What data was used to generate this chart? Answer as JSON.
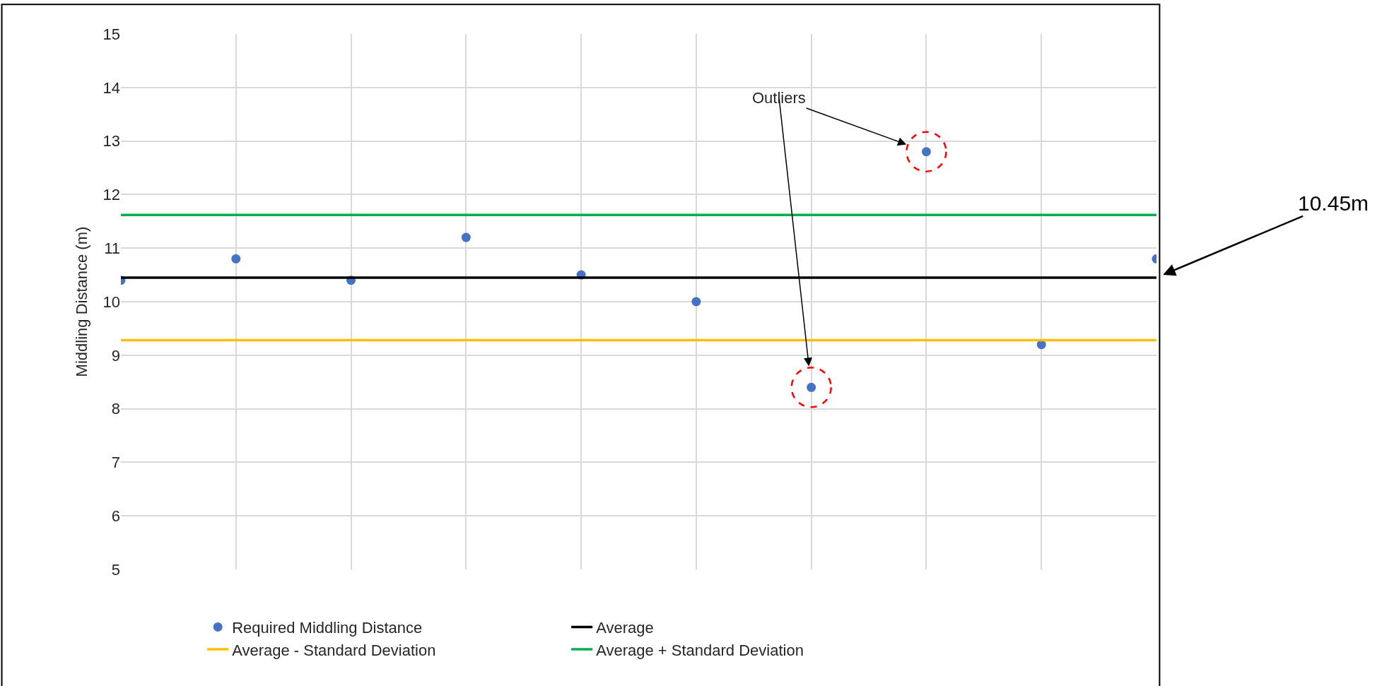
{
  "chart_data": {
    "type": "scatter",
    "ylabel": "Middling Distance (m)",
    "categories": [
      null,
      null,
      null,
      null,
      null,
      null,
      null,
      null,
      null,
      null
    ],
    "series": [
      {
        "name": "Required Middling Distance",
        "marker": "circle",
        "color": "#4472c4",
        "values": [
          10.4,
          10.8,
          10.4,
          11.2,
          10.5,
          10.0,
          8.4,
          12.8,
          9.2,
          10.8
        ]
      },
      {
        "name": "Average",
        "type": "line",
        "color": "#000000",
        "values": [
          10.45,
          10.45,
          10.45,
          10.45,
          10.45,
          10.45,
          10.45,
          10.45,
          10.45,
          10.45
        ]
      },
      {
        "name": "Average - Standard Deviation",
        "type": "line",
        "color": "#ffc000",
        "values": [
          9.28,
          9.28,
          9.28,
          9.28,
          9.28,
          9.28,
          9.28,
          9.28,
          9.28,
          9.28
        ]
      },
      {
        "name": "Average + Standard Deviation",
        "type": "line",
        "color": "#00b050",
        "values": [
          11.62,
          11.62,
          11.62,
          11.62,
          11.62,
          11.62,
          11.62,
          11.62,
          11.62,
          11.62
        ]
      }
    ],
    "ylim": [
      5,
      15
    ],
    "yticks": [
      5,
      6,
      7,
      8,
      9,
      10,
      11,
      12,
      13,
      14,
      15
    ],
    "grid": true,
    "legend": "bottom",
    "annotations": [
      "Outliers",
      "10.45m"
    ]
  }
}
